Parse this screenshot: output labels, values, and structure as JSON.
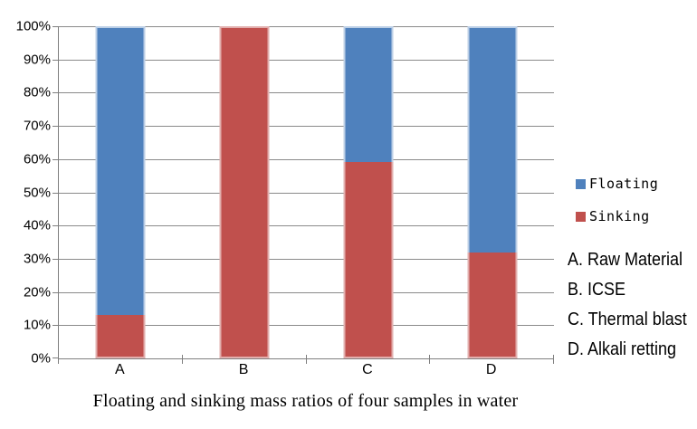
{
  "chart_data": {
    "type": "bar",
    "stacked": true,
    "title": "Floating and sinking mass ratios of four samples in water",
    "categories": [
      "A",
      "B",
      "C",
      "D"
    ],
    "series": [
      {
        "name": "Sinking",
        "color": "#C0504D",
        "border_color": "#E2AFAE",
        "values": [
          13,
          100,
          59,
          32
        ]
      },
      {
        "name": "Floating",
        "color": "#4F81BD",
        "border_color": "#BCCFE6",
        "values": [
          87,
          0,
          41,
          68
        ]
      }
    ],
    "ylim": [
      0,
      100
    ],
    "ytick_step": 10,
    "ytick_labels": [
      "0%",
      "10%",
      "20%",
      "30%",
      "40%",
      "50%",
      "60%",
      "70%",
      "80%",
      "90%",
      "100%"
    ],
    "grid": true,
    "legend_position": "right"
  },
  "legend": {
    "items": [
      {
        "label": "Floating",
        "color": "#4F81BD"
      },
      {
        "label": "Sinking",
        "color": "#C0504D"
      }
    ]
  },
  "annotations": {
    "lines": [
      "A. Raw Material",
      "B. ICSE",
      "C. Thermal blast",
      "D. Alkali retting"
    ]
  },
  "colors": {
    "background": "#FFFFFF",
    "gridline": "#8A8A8A",
    "axis": "#7F7F7F",
    "text": "#000000"
  }
}
